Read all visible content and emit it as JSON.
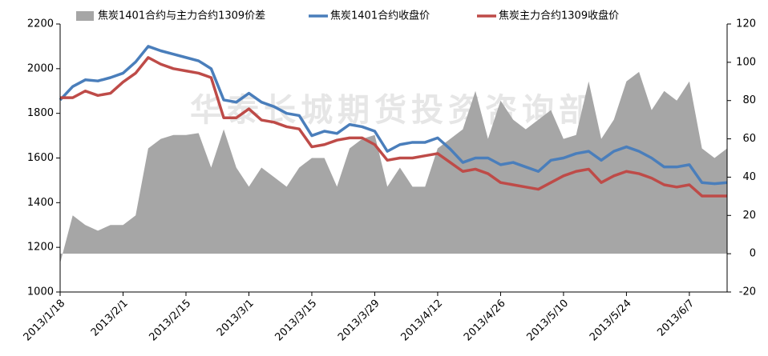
{
  "chart_data": {
    "type": "line",
    "watermark": "华泰长城期货投资咨询部",
    "categories": [
      "2013/1/18",
      null,
      null,
      null,
      null,
      "2013/2/1",
      null,
      null,
      null,
      null,
      "2013/2/15",
      null,
      null,
      null,
      null,
      "2013/3/1",
      null,
      null,
      null,
      null,
      "2013/3/15",
      null,
      null,
      null,
      null,
      "2013/3/29",
      null,
      null,
      null,
      null,
      "2013/4/12",
      null,
      null,
      null,
      null,
      "2013/4/26",
      null,
      null,
      null,
      null,
      "2013/5/10",
      null,
      null,
      null,
      null,
      "2013/5/24",
      null,
      null,
      null,
      null,
      "2013/6/7",
      null,
      null,
      null
    ],
    "series": [
      {
        "name": "焦炭1401合约与主力合约1309价差",
        "type": "area",
        "axis": "y2",
        "color": "#a6a6a6",
        "values": [
          -5,
          20,
          15,
          12,
          15,
          15,
          20,
          55,
          60,
          62,
          62,
          63,
          45,
          65,
          45,
          35,
          45,
          40,
          35,
          45,
          50,
          50,
          35,
          55,
          60,
          62,
          35,
          45,
          35,
          35,
          55,
          60,
          65,
          85,
          60,
          80,
          70,
          65,
          70,
          75,
          60,
          62,
          90,
          60,
          70,
          90,
          95,
          75,
          85,
          80,
          90,
          55,
          50,
          55
        ]
      },
      {
        "name": "焦炭1401合约收盘价",
        "type": "line",
        "color": "#4a7ebb",
        "values": [
          1860,
          1920,
          1950,
          1945,
          1960,
          1980,
          2030,
          2100,
          2080,
          2065,
          2050,
          2035,
          2000,
          1860,
          1850,
          1890,
          1850,
          1830,
          1800,
          1790,
          1700,
          1720,
          1710,
          1750,
          1740,
          1720,
          1630,
          1660,
          1670,
          1670,
          1690,
          1640,
          1580,
          1600,
          1600,
          1570,
          1580,
          1560,
          1540,
          1590,
          1600,
          1620,
          1630,
          1590,
          1630,
          1650,
          1630,
          1600,
          1560,
          1560,
          1570,
          1490,
          1485,
          1490
        ]
      },
      {
        "name": "焦炭主力合约1309收盘价",
        "type": "line",
        "color": "#be4b48",
        "values": [
          1870,
          1870,
          1900,
          1880,
          1890,
          1940,
          1980,
          2050,
          2020,
          2000,
          1990,
          1980,
          1960,
          1780,
          1780,
          1820,
          1770,
          1760,
          1740,
          1730,
          1650,
          1660,
          1680,
          1690,
          1690,
          1660,
          1590,
          1600,
          1600,
          1610,
          1620,
          1580,
          1540,
          1550,
          1530,
          1490,
          1480,
          1470,
          1460,
          1490,
          1520,
          1540,
          1550,
          1490,
          1520,
          1540,
          1530,
          1510,
          1480,
          1470,
          1480,
          1430,
          1430,
          1430
        ]
      }
    ],
    "ylim": [
      1000,
      2200
    ],
    "yticks": [
      1000,
      1200,
      1400,
      1600,
      1800,
      2000,
      2200
    ],
    "y2lim": [
      -20,
      120
    ],
    "y2ticks": [
      -20,
      0,
      20,
      40,
      60,
      80,
      100,
      120
    ],
    "grid": false,
    "legend": "top"
  }
}
